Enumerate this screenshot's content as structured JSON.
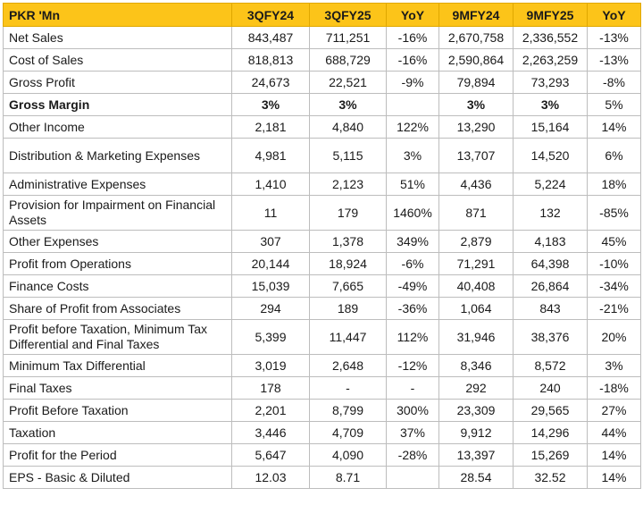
{
  "header": [
    "PKR 'Mn",
    "3QFY24",
    "3QFY25",
    "YoY",
    "9MFY24",
    "9MFY25",
    "YoY"
  ],
  "rows": [
    {
      "label": "Net Sales",
      "v": [
        "843,487",
        "711,251",
        "-16%",
        "2,670,758",
        "2,336,552",
        "-13%"
      ]
    },
    {
      "label": "Cost of Sales",
      "v": [
        "818,813",
        "688,729",
        "-16%",
        "2,590,864",
        "2,263,259",
        "-13%"
      ]
    },
    {
      "label": "Gross Profit",
      "v": [
        "24,673",
        "22,521",
        "-9%",
        "79,894",
        "73,293",
        "-8%"
      ]
    },
    {
      "label": "Gross Margin",
      "v": [
        "3%",
        "3%",
        "",
        "3%",
        "3%",
        "5%"
      ]
    },
    {
      "label": "Other Income",
      "v": [
        "2,181",
        "4,840",
        "122%",
        "13,290",
        "15,164",
        "14%"
      ]
    },
    {
      "label": "Distribution & Marketing Expenses",
      "v": [
        "4,981",
        "5,115",
        "3%",
        "13,707",
        "14,520",
        "6%"
      ]
    },
    {
      "label": "Administrative Expenses",
      "v": [
        "1,410",
        "2,123",
        "51%",
        "4,436",
        "5,224",
        "18%"
      ]
    },
    {
      "label": "Provision for Impairment on Financial Assets",
      "v": [
        "11",
        "179",
        "1460%",
        "871",
        "132",
        "-85%"
      ]
    },
    {
      "label": "Other Expenses",
      "v": [
        "307",
        "1,378",
        "349%",
        "2,879",
        "4,183",
        "45%"
      ]
    },
    {
      "label": "Profit from Operations",
      "v": [
        "20,144",
        "18,924",
        "-6%",
        "71,291",
        "64,398",
        "-10%"
      ]
    },
    {
      "label": "Finance Costs",
      "v": [
        "15,039",
        "7,665",
        "-49%",
        "40,408",
        "26,864",
        "-34%"
      ]
    },
    {
      "label": "Share of Profit from Associates",
      "v": [
        "294",
        "189",
        "-36%",
        "1,064",
        "843",
        "-21%"
      ]
    },
    {
      "label": "Profit before Taxation, Minimum Tax Differential and Final Taxes",
      "v": [
        "5,399",
        "11,447",
        "112%",
        "31,946",
        "38,376",
        "20%"
      ]
    },
    {
      "label": "Minimum Tax Differential",
      "v": [
        "3,019",
        "2,648",
        "-12%",
        "8,346",
        "8,572",
        "3%"
      ]
    },
    {
      "label": "Final Taxes",
      "v": [
        "178",
        "-",
        "-",
        "292",
        "240",
        "-18%"
      ]
    },
    {
      "label": "Profit Before Taxation",
      "v": [
        "2,201",
        "8,799",
        "300%",
        "23,309",
        "29,565",
        "27%"
      ]
    },
    {
      "label": "Taxation",
      "v": [
        "3,446",
        "4,709",
        "37%",
        "9,912",
        "14,296",
        "44%"
      ]
    },
    {
      "label": "Profit for the Period",
      "v": [
        "5,647",
        "4,090",
        "-28%",
        "13,397",
        "15,269",
        "14%"
      ]
    },
    {
      "label": "EPS - Basic & Diluted",
      "v": [
        "12.03",
        "8.71",
        "",
        "28.54",
        "32.52",
        "14%"
      ]
    }
  ]
}
